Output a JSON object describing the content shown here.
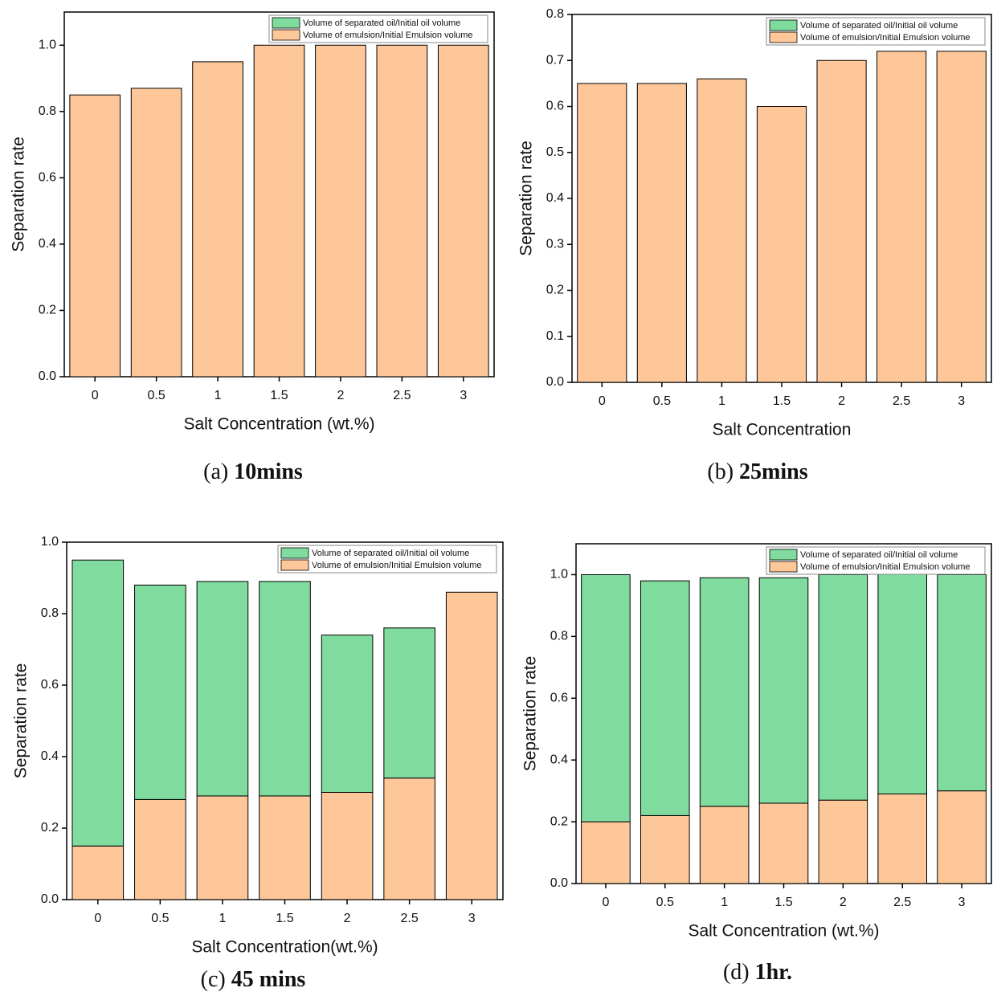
{
  "chart_data": [
    {
      "type": "bar",
      "stacked": true,
      "panel": "(a)",
      "title": "10mins",
      "x_label": "Salt Concentration (wt.%)",
      "y_label": "Separation rate",
      "categories": [
        "0",
        "0.5",
        "1",
        "1.5",
        "2",
        "2.5",
        "3"
      ],
      "series": [
        {
          "name": "Volume of emulsion/Initial Emulsion volume",
          "color": "#fdc79a",
          "values": [
            0.85,
            0.87,
            0.95,
            1.0,
            1.0,
            1.0,
            1.0
          ]
        },
        {
          "name": "Volume of separated oil/Initial oil volume",
          "color": "#7fdc9e",
          "values": [
            0,
            0,
            0,
            0,
            0,
            0,
            0
          ]
        }
      ],
      "ylim": [
        0,
        1.1
      ],
      "yticks": [
        {
          "value": 0,
          "label": "0.0"
        },
        {
          "value": 0.2,
          "label": "0.2"
        },
        {
          "value": 0.4,
          "label": "0.4"
        },
        {
          "value": 0.6,
          "label": "0.6"
        },
        {
          "value": 0.8,
          "label": "0.8"
        },
        {
          "value": 1.0,
          "label": "1.0"
        }
      ]
    },
    {
      "type": "bar",
      "stacked": true,
      "panel": "(b)",
      "title": "25mins",
      "x_label": "Salt Concentration",
      "y_label": "Separation rate",
      "categories": [
        "0",
        "0.5",
        "1",
        "1.5",
        "2",
        "2.5",
        "3"
      ],
      "series": [
        {
          "name": "Volume of emulsion/Initial Emulsion volume",
          "color": "#fdc79a",
          "values": [
            0.65,
            0.65,
            0.66,
            0.6,
            0.7,
            0.72,
            0.72
          ]
        },
        {
          "name": "Volume of separated oil/Initial oil volume",
          "color": "#7fdc9e",
          "values": [
            0,
            0,
            0,
            0,
            0,
            0,
            0
          ]
        }
      ],
      "ylim": [
        0,
        0.8
      ],
      "yticks": [
        {
          "value": 0,
          "label": "0.0"
        },
        0.1,
        0.2,
        0.3,
        0.4,
        0.5,
        0.6,
        0.7,
        0.8
      ]
    },
    {
      "type": "bar",
      "stacked": true,
      "panel": "(c)",
      "title": "45 mins",
      "x_label": "Salt Concentration(wt.%)",
      "y_label": "Separation rate",
      "categories": [
        "0",
        "0.5",
        "1",
        "1.5",
        "2",
        "2.5",
        "3"
      ],
      "series": [
        {
          "name": "Volume of emulsion/Initial Emulsion volume",
          "color": "#fdc79a",
          "values": [
            0.15,
            0.28,
            0.29,
            0.29,
            0.3,
            0.34,
            0.86
          ]
        },
        {
          "name": "Volume of separated oil/Initial oil volume",
          "color": "#7fdc9e",
          "values": [
            0.8,
            0.6,
            0.6,
            0.6,
            0.44,
            0.42,
            0
          ]
        }
      ],
      "ylim": [
        0,
        1.0
      ],
      "yticks": [
        {
          "value": 0,
          "label": "0.0"
        },
        0.2,
        0.4,
        0.6,
        0.8,
        {
          "value": 1.0,
          "label": "1.0"
        }
      ]
    },
    {
      "type": "bar",
      "stacked": true,
      "panel": "(d)",
      "title": "1hr.",
      "x_label": "Salt Concentration  (wt.%)",
      "y_label": "Separation rate",
      "categories": [
        "0",
        "0.5",
        "1",
        "1.5",
        "2",
        "2.5",
        "3"
      ],
      "series": [
        {
          "name": "Volume of emulsion/Initial Emulsion volume",
          "color": "#fdc79a",
          "values": [
            0.2,
            0.22,
            0.25,
            0.26,
            0.27,
            0.29,
            0.3
          ]
        },
        {
          "name": "Volume of separated oil/Initial oil volume",
          "color": "#7fdc9e",
          "values": [
            0.8,
            0.76,
            0.74,
            0.73,
            0.73,
            0.72,
            0.7
          ]
        }
      ],
      "ylim": [
        0,
        1.1
      ],
      "yticks": [
        {
          "value": 0,
          "label": "0.0"
        },
        0.2,
        0.4,
        0.6,
        0.8,
        {
          "value": 1.0,
          "label": "1.0"
        }
      ]
    }
  ]
}
